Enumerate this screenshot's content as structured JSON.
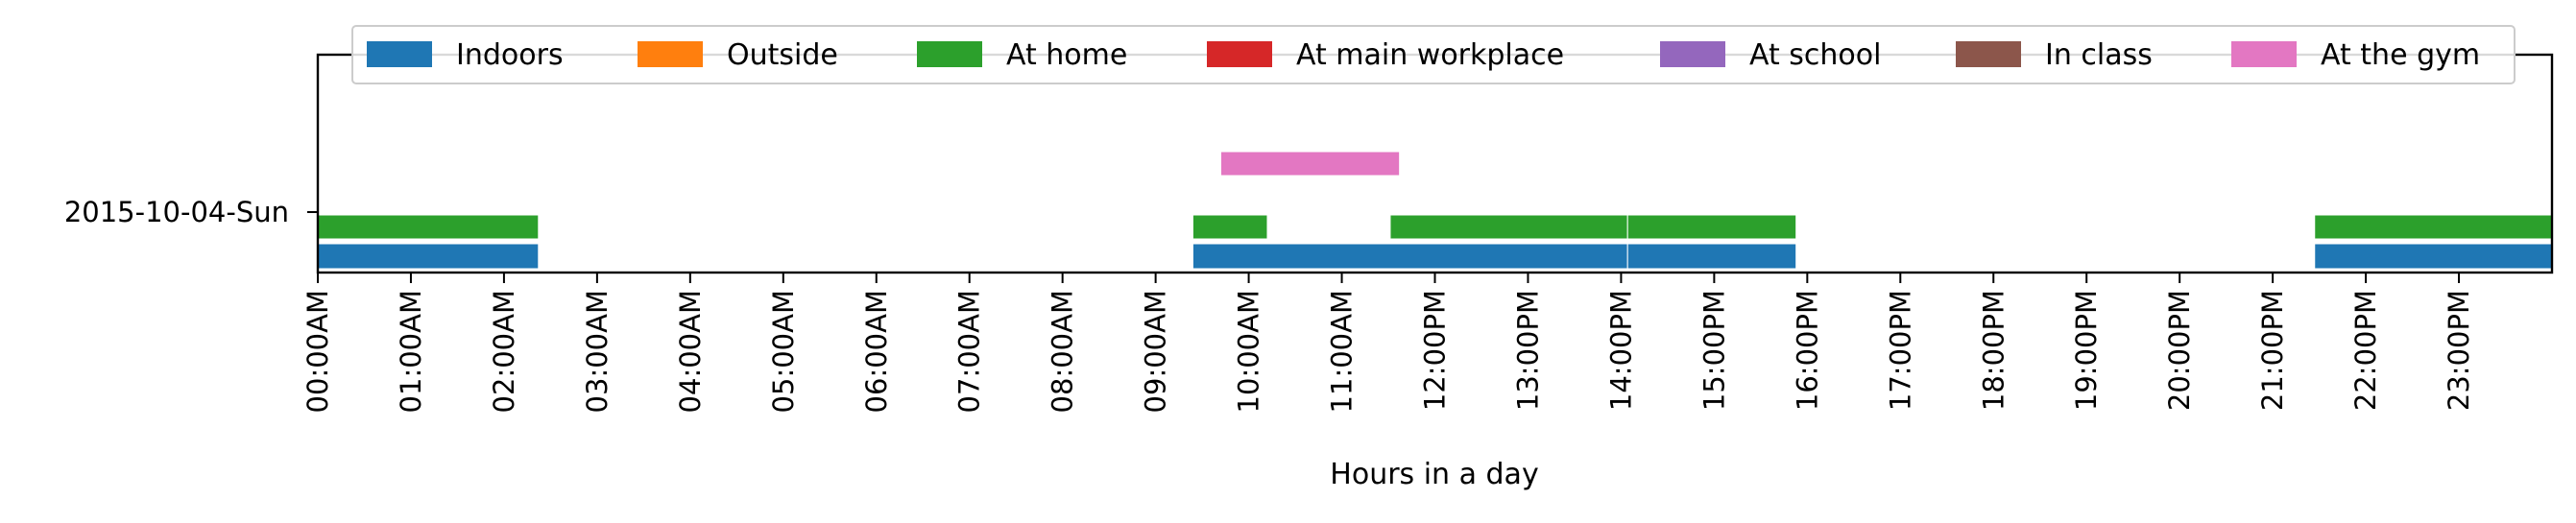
{
  "chart_data": {
    "type": "timeline",
    "title": "",
    "xlabel": "Hours in a day",
    "ylabel": "",
    "xlim": [
      0,
      24
    ],
    "x_unit": "hours",
    "x_ticks": [
      "00:00AM",
      "01:00AM",
      "02:00AM",
      "03:00AM",
      "04:00AM",
      "05:00AM",
      "06:00AM",
      "07:00AM",
      "08:00AM",
      "09:00AM",
      "10:00AM",
      "11:00AM",
      "12:00PM",
      "13:00PM",
      "14:00PM",
      "15:00PM",
      "16:00PM",
      "17:00PM",
      "18:00PM",
      "19:00PM",
      "20:00PM",
      "21:00PM",
      "22:00PM",
      "23:00PM"
    ],
    "categories": [
      "2015-10-04-Sun"
    ],
    "grid": false,
    "legend_position": "top",
    "series": [
      {
        "name": "Indoors",
        "color": "#1f77b4",
        "intervals": [
          [
            0.0,
            2.37
          ],
          [
            9.4,
            14.07
          ],
          [
            14.07,
            15.88
          ],
          [
            21.45,
            24.0
          ]
        ]
      },
      {
        "name": "Outside",
        "color": "#ff7f0e",
        "intervals": []
      },
      {
        "name": "At home",
        "color": "#2ca02c",
        "intervals": [
          [
            0.0,
            2.37
          ],
          [
            9.4,
            10.2
          ],
          [
            11.52,
            14.07
          ],
          [
            14.07,
            15.88
          ],
          [
            21.45,
            24.0
          ]
        ]
      },
      {
        "name": "At main workplace",
        "color": "#d62728",
        "intervals": []
      },
      {
        "name": "At school",
        "color": "#9467bd",
        "intervals": []
      },
      {
        "name": "In class",
        "color": "#8c564b",
        "intervals": []
      },
      {
        "name": "At the gym",
        "color": "#e377c2",
        "intervals": [
          [
            9.7,
            11.62
          ]
        ]
      }
    ]
  }
}
